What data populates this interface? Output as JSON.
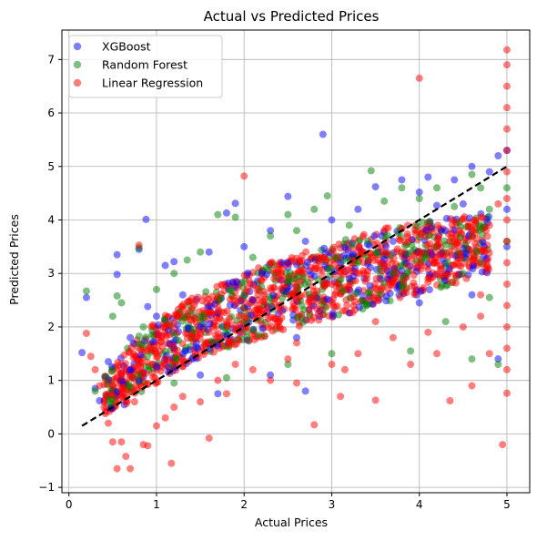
{
  "chart_data": {
    "type": "scatter",
    "title": "Actual vs Predicted Prices",
    "xlabel": "Actual Prices",
    "ylabel": "Predicted Prices",
    "xlim": [
      -0.08,
      5.26
    ],
    "ylim": [
      -1.1,
      7.55
    ],
    "x_ticks": [
      0,
      1,
      2,
      3,
      4,
      5
    ],
    "y_ticks": [
      -1,
      0,
      1,
      2,
      3,
      4,
      5,
      6,
      7
    ],
    "grid": true,
    "legend_position": "upper-left",
    "reference_line": {
      "style": "dashed",
      "color": "#000000",
      "x": [
        0.15,
        5.0
      ],
      "y": [
        0.15,
        5.0
      ]
    },
    "series": [
      {
        "name": "XGBoost",
        "color": "#0000ff",
        "alpha": 0.5,
        "points": [
          [
            0.15,
            1.52
          ],
          [
            0.2,
            2.55
          ],
          [
            0.3,
            0.85
          ],
          [
            0.35,
            0.62
          ],
          [
            0.45,
            1.35
          ],
          [
            0.55,
            3.35
          ],
          [
            0.55,
            2.98
          ],
          [
            0.6,
            1.0
          ],
          [
            0.7,
            1.8
          ],
          [
            0.8,
            3.45
          ],
          [
            0.88,
            4.01
          ],
          [
            0.9,
            2.38
          ],
          [
            1.0,
            2.2
          ],
          [
            1.1,
            3.15
          ],
          [
            1.2,
            3.22
          ],
          [
            1.3,
            2.6
          ],
          [
            1.5,
            2.0
          ],
          [
            1.6,
            3.4
          ],
          [
            1.8,
            4.13
          ],
          [
            1.9,
            4.31
          ],
          [
            2.0,
            3.5
          ],
          [
            2.2,
            3.0
          ],
          [
            2.3,
            3.8
          ],
          [
            2.5,
            4.44
          ],
          [
            2.5,
            3.2
          ],
          [
            2.7,
            3.6
          ],
          [
            2.9,
            5.6
          ],
          [
            3.0,
            4.0
          ],
          [
            3.1,
            3.2
          ],
          [
            3.3,
            4.2
          ],
          [
            3.5,
            4.62
          ],
          [
            3.8,
            4.75
          ],
          [
            4.0,
            4.52
          ],
          [
            4.1,
            4.8
          ],
          [
            4.2,
            4.27
          ],
          [
            4.4,
            4.75
          ],
          [
            4.5,
            4.3
          ],
          [
            4.6,
            5.0
          ],
          [
            4.8,
            4.9
          ],
          [
            4.9,
            5.2
          ],
          [
            5.0,
            5.3
          ],
          [
            5.0,
            4.2
          ],
          [
            5.0,
            3.5
          ],
          [
            0.7,
            1.2
          ],
          [
            1.2,
            1.6
          ],
          [
            1.5,
            1.1
          ],
          [
            2.1,
            2.5
          ],
          [
            2.6,
            1.8
          ],
          [
            3.2,
            2.9
          ],
          [
            3.7,
            3.6
          ],
          [
            4.3,
            3.8
          ],
          [
            4.9,
            1.4
          ],
          [
            2.7,
            0.8
          ],
          [
            1.7,
            0.75
          ],
          [
            2.3,
            1.1
          ],
          [
            4.0,
            2.45
          ],
          [
            4.6,
            2.6
          ]
        ]
      },
      {
        "name": "Random Forest",
        "color": "#008000",
        "alpha": 0.5,
        "points": [
          [
            0.2,
            2.67
          ],
          [
            0.3,
            0.8
          ],
          [
            0.5,
            2.2
          ],
          [
            0.55,
            2.58
          ],
          [
            0.6,
            2.45
          ],
          [
            0.8,
            3.48
          ],
          [
            0.85,
            2.0
          ],
          [
            1.0,
            2.7
          ],
          [
            1.2,
            3.0
          ],
          [
            1.35,
            3.25
          ],
          [
            1.5,
            3.4
          ],
          [
            1.7,
            4.1
          ],
          [
            1.9,
            4.05
          ],
          [
            2.1,
            3.3
          ],
          [
            2.3,
            3.7
          ],
          [
            2.5,
            4.1
          ],
          [
            2.6,
            3.8
          ],
          [
            2.8,
            4.2
          ],
          [
            2.95,
            4.45
          ],
          [
            3.2,
            3.9
          ],
          [
            3.45,
            4.92
          ],
          [
            3.6,
            4.35
          ],
          [
            3.8,
            4.6
          ],
          [
            4.0,
            4.4
          ],
          [
            4.2,
            4.6
          ],
          [
            4.4,
            4.25
          ],
          [
            4.6,
            4.85
          ],
          [
            4.7,
            4.6
          ],
          [
            4.8,
            4.2
          ],
          [
            4.9,
            1.3
          ],
          [
            4.6,
            1.4
          ],
          [
            4.5,
            3.0
          ],
          [
            4.8,
            2.55
          ],
          [
            3.9,
            1.55
          ],
          [
            3.0,
            1.5
          ],
          [
            2.5,
            1.3
          ],
          [
            1.8,
            1.05
          ],
          [
            1.2,
            0.95
          ],
          [
            0.5,
            0.65
          ],
          [
            0.8,
            1.1
          ],
          [
            1.5,
            2.2
          ],
          [
            2.0,
            2.6
          ],
          [
            2.7,
            2.8
          ],
          [
            3.3,
            3.2
          ],
          [
            3.7,
            3.0
          ],
          [
            4.2,
            3.5
          ],
          [
            5.0,
            4.6
          ],
          [
            5.0,
            3.6
          ],
          [
            4.3,
            2.1
          ],
          [
            3.4,
            2.4
          ]
        ]
      },
      {
        "name": "Linear Regression",
        "color": "#ff0000",
        "alpha": 0.5,
        "points": [
          [
            0.2,
            1.88
          ],
          [
            0.25,
            1.45
          ],
          [
            0.3,
            1.2
          ],
          [
            0.35,
            0.9
          ],
          [
            0.4,
            0.5
          ],
          [
            0.45,
            0.2
          ],
          [
            0.5,
            -0.15
          ],
          [
            0.55,
            -0.65
          ],
          [
            0.6,
            -0.15
          ],
          [
            0.65,
            -0.42
          ],
          [
            0.7,
            -0.65
          ],
          [
            0.75,
            0.6
          ],
          [
            0.8,
            3.53
          ],
          [
            0.85,
            -0.2
          ],
          [
            0.9,
            -0.22
          ],
          [
            1.0,
            0.15
          ],
          [
            1.1,
            0.3
          ],
          [
            1.2,
            0.5
          ],
          [
            1.17,
            -0.55
          ],
          [
            1.3,
            0.7
          ],
          [
            1.5,
            0.6
          ],
          [
            1.6,
            -0.08
          ],
          [
            1.7,
            1.0
          ],
          [
            1.8,
            0.75
          ],
          [
            2.0,
            4.82
          ],
          [
            2.1,
            1.2
          ],
          [
            2.3,
            1.0
          ],
          [
            2.5,
            1.4
          ],
          [
            2.6,
            1.7
          ],
          [
            2.8,
            0.17
          ],
          [
            3.0,
            1.3
          ],
          [
            3.1,
            0.7
          ],
          [
            3.15,
            1.2
          ],
          [
            3.3,
            1.5
          ],
          [
            3.5,
            0.63
          ],
          [
            3.7,
            1.8
          ],
          [
            3.9,
            1.3
          ],
          [
            4.0,
            6.65
          ],
          [
            4.1,
            1.9
          ],
          [
            4.2,
            1.5
          ],
          [
            4.35,
            0.62
          ],
          [
            4.5,
            2.0
          ],
          [
            4.7,
            2.2
          ],
          [
            4.95,
            -0.2
          ],
          [
            5.0,
            0.76
          ],
          [
            5.0,
            7.18
          ],
          [
            5.0,
            6.9
          ],
          [
            5.0,
            6.5
          ],
          [
            5.0,
            6.1
          ],
          [
            5.0,
            5.7
          ],
          [
            5.0,
            5.3
          ],
          [
            5.0,
            4.9
          ],
          [
            5.0,
            4.4
          ],
          [
            5.0,
            4.0
          ],
          [
            5.0,
            3.6
          ],
          [
            5.0,
            3.2
          ],
          [
            5.0,
            2.8
          ],
          [
            5.0,
            2.4
          ],
          [
            5.0,
            2.0
          ],
          [
            5.0,
            1.6
          ],
          [
            5.0,
            1.2
          ],
          [
            4.9,
            4.3
          ],
          [
            4.8,
            3.9
          ],
          [
            4.6,
            3.7
          ],
          [
            4.4,
            3.6
          ],
          [
            4.2,
            3.5
          ],
          [
            4.0,
            3.3
          ],
          [
            3.8,
            3.4
          ],
          [
            3.6,
            3.1
          ],
          [
            3.4,
            2.9
          ],
          [
            3.2,
            2.7
          ],
          [
            3.0,
            2.8
          ],
          [
            2.8,
            2.6
          ],
          [
            2.6,
            2.5
          ],
          [
            2.4,
            2.4
          ],
          [
            2.2,
            2.3
          ],
          [
            2.0,
            2.2
          ],
          [
            1.8,
            2.1
          ],
          [
            1.6,
            1.9
          ],
          [
            1.4,
            1.8
          ],
          [
            1.2,
            1.6
          ],
          [
            1.0,
            1.5
          ],
          [
            0.8,
            1.3
          ],
          [
            0.6,
            1.1
          ],
          [
            0.5,
            0.9
          ],
          [
            4.8,
            1.5
          ],
          [
            4.6,
            0.9
          ],
          [
            2.6,
            0.95
          ],
          [
            1.9,
            1.3
          ],
          [
            3.5,
            2.1
          ],
          [
            4.1,
            2.9
          ],
          [
            4.7,
            2.6
          ]
        ]
      }
    ],
    "dense_band": {
      "comment_free": true,
      "x": [
        0.4,
        0.6,
        0.8,
        1.0,
        1.2,
        1.4,
        1.6,
        1.8,
        2.0,
        2.2,
        2.4,
        2.6,
        2.8,
        3.0,
        3.2,
        3.4,
        3.6,
        3.8,
        4.0,
        4.2,
        4.4,
        4.6,
        4.8
      ],
      "low": [
        0.35,
        0.5,
        0.75,
        0.95,
        1.15,
        1.35,
        1.5,
        1.6,
        1.7,
        1.8,
        1.9,
        2.0,
        2.05,
        2.15,
        2.25,
        2.35,
        2.45,
        2.55,
        2.6,
        2.7,
        2.8,
        2.9,
        3.0
      ],
      "high": [
        1.1,
        1.5,
        1.85,
        2.1,
        2.35,
        2.55,
        2.7,
        2.85,
        3.0,
        3.15,
        3.25,
        3.35,
        3.45,
        3.55,
        3.65,
        3.75,
        3.85,
        3.9,
        3.95,
        4.0,
        4.05,
        4.1,
        4.15
      ]
    }
  }
}
